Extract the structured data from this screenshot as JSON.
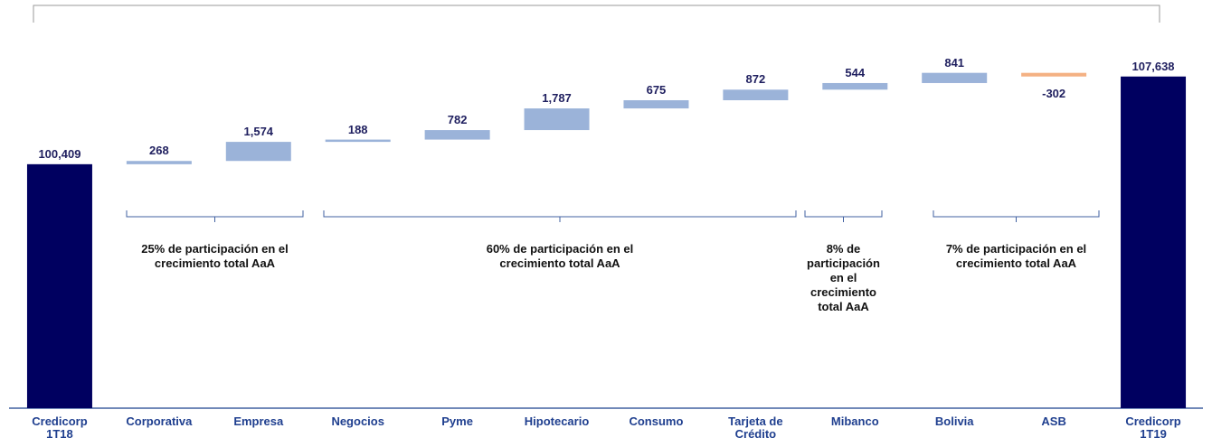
{
  "chart_data": {
    "type": "waterfall",
    "categories": [
      "Credicorp 1T18",
      "Corporativa",
      "Empresa",
      "Negocios",
      "Pyme",
      "Hipotecario",
      "Consumo",
      "Tarjeta de Crédito",
      "Mibanco",
      "Bolivia",
      "ASB",
      "Credicorp 1T19"
    ],
    "measure": [
      "absolute",
      "relative",
      "relative",
      "relative",
      "relative",
      "relative",
      "relative",
      "relative",
      "relative",
      "relative",
      "relative",
      "absolute"
    ],
    "values": [
      100409,
      268,
      1574,
      188,
      782,
      1787,
      675,
      872,
      544,
      841,
      -302,
      107638
    ],
    "value_labels": [
      "100,409",
      "268",
      "1,574",
      "188",
      "782",
      "1,787",
      "675",
      "872",
      "544",
      "841",
      "-302",
      "107,638"
    ],
    "ylim": [
      80300,
      110000
    ],
    "total_color": "#000060",
    "color": "#9bb3d9",
    "decrease_color": "#f4b183",
    "annotations": [
      "25% de participación en el crecimiento total AaA",
      "60% de participación en el crecimiento total AaA",
      "8% de participación en el crecimiento total AaA",
      "7% de participación en el crecimiento total AaA"
    ]
  }
}
